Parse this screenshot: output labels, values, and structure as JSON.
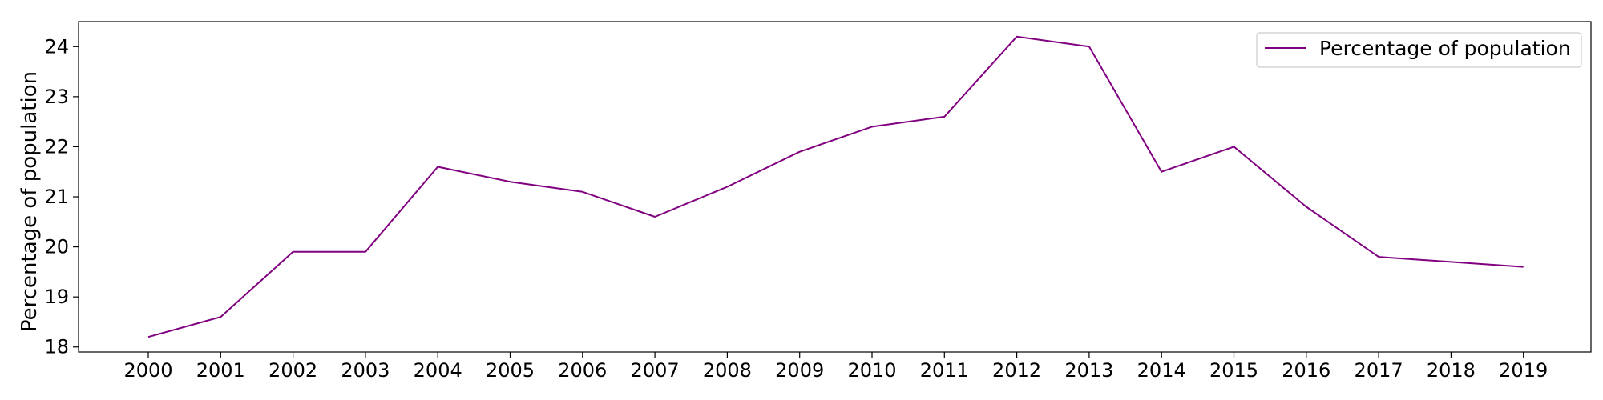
{
  "chart_data": {
    "type": "line",
    "title": "",
    "xlabel": "",
    "ylabel": "Percentage of population",
    "x": [
      "2000",
      "2001",
      "2002",
      "2003",
      "2004",
      "2005",
      "2006",
      "2007",
      "2008",
      "2009",
      "2010",
      "2011",
      "2012",
      "2013",
      "2014",
      "2015",
      "2016",
      "2017",
      "2018",
      "2019"
    ],
    "series": [
      {
        "name": "Percentage of population",
        "color": "#800080",
        "values": [
          18.2,
          18.6,
          19.9,
          19.9,
          21.6,
          21.3,
          21.1,
          20.6,
          21.2,
          21.9,
          22.4,
          22.6,
          24.2,
          24.0,
          21.5,
          22.0,
          20.8,
          19.8,
          19.7,
          19.6
        ]
      }
    ],
    "ylim": [
      17.9,
      24.5
    ],
    "yticks": [
      18,
      19,
      20,
      21,
      22,
      23,
      24
    ],
    "grid": false,
    "legend_position": "top-right"
  }
}
